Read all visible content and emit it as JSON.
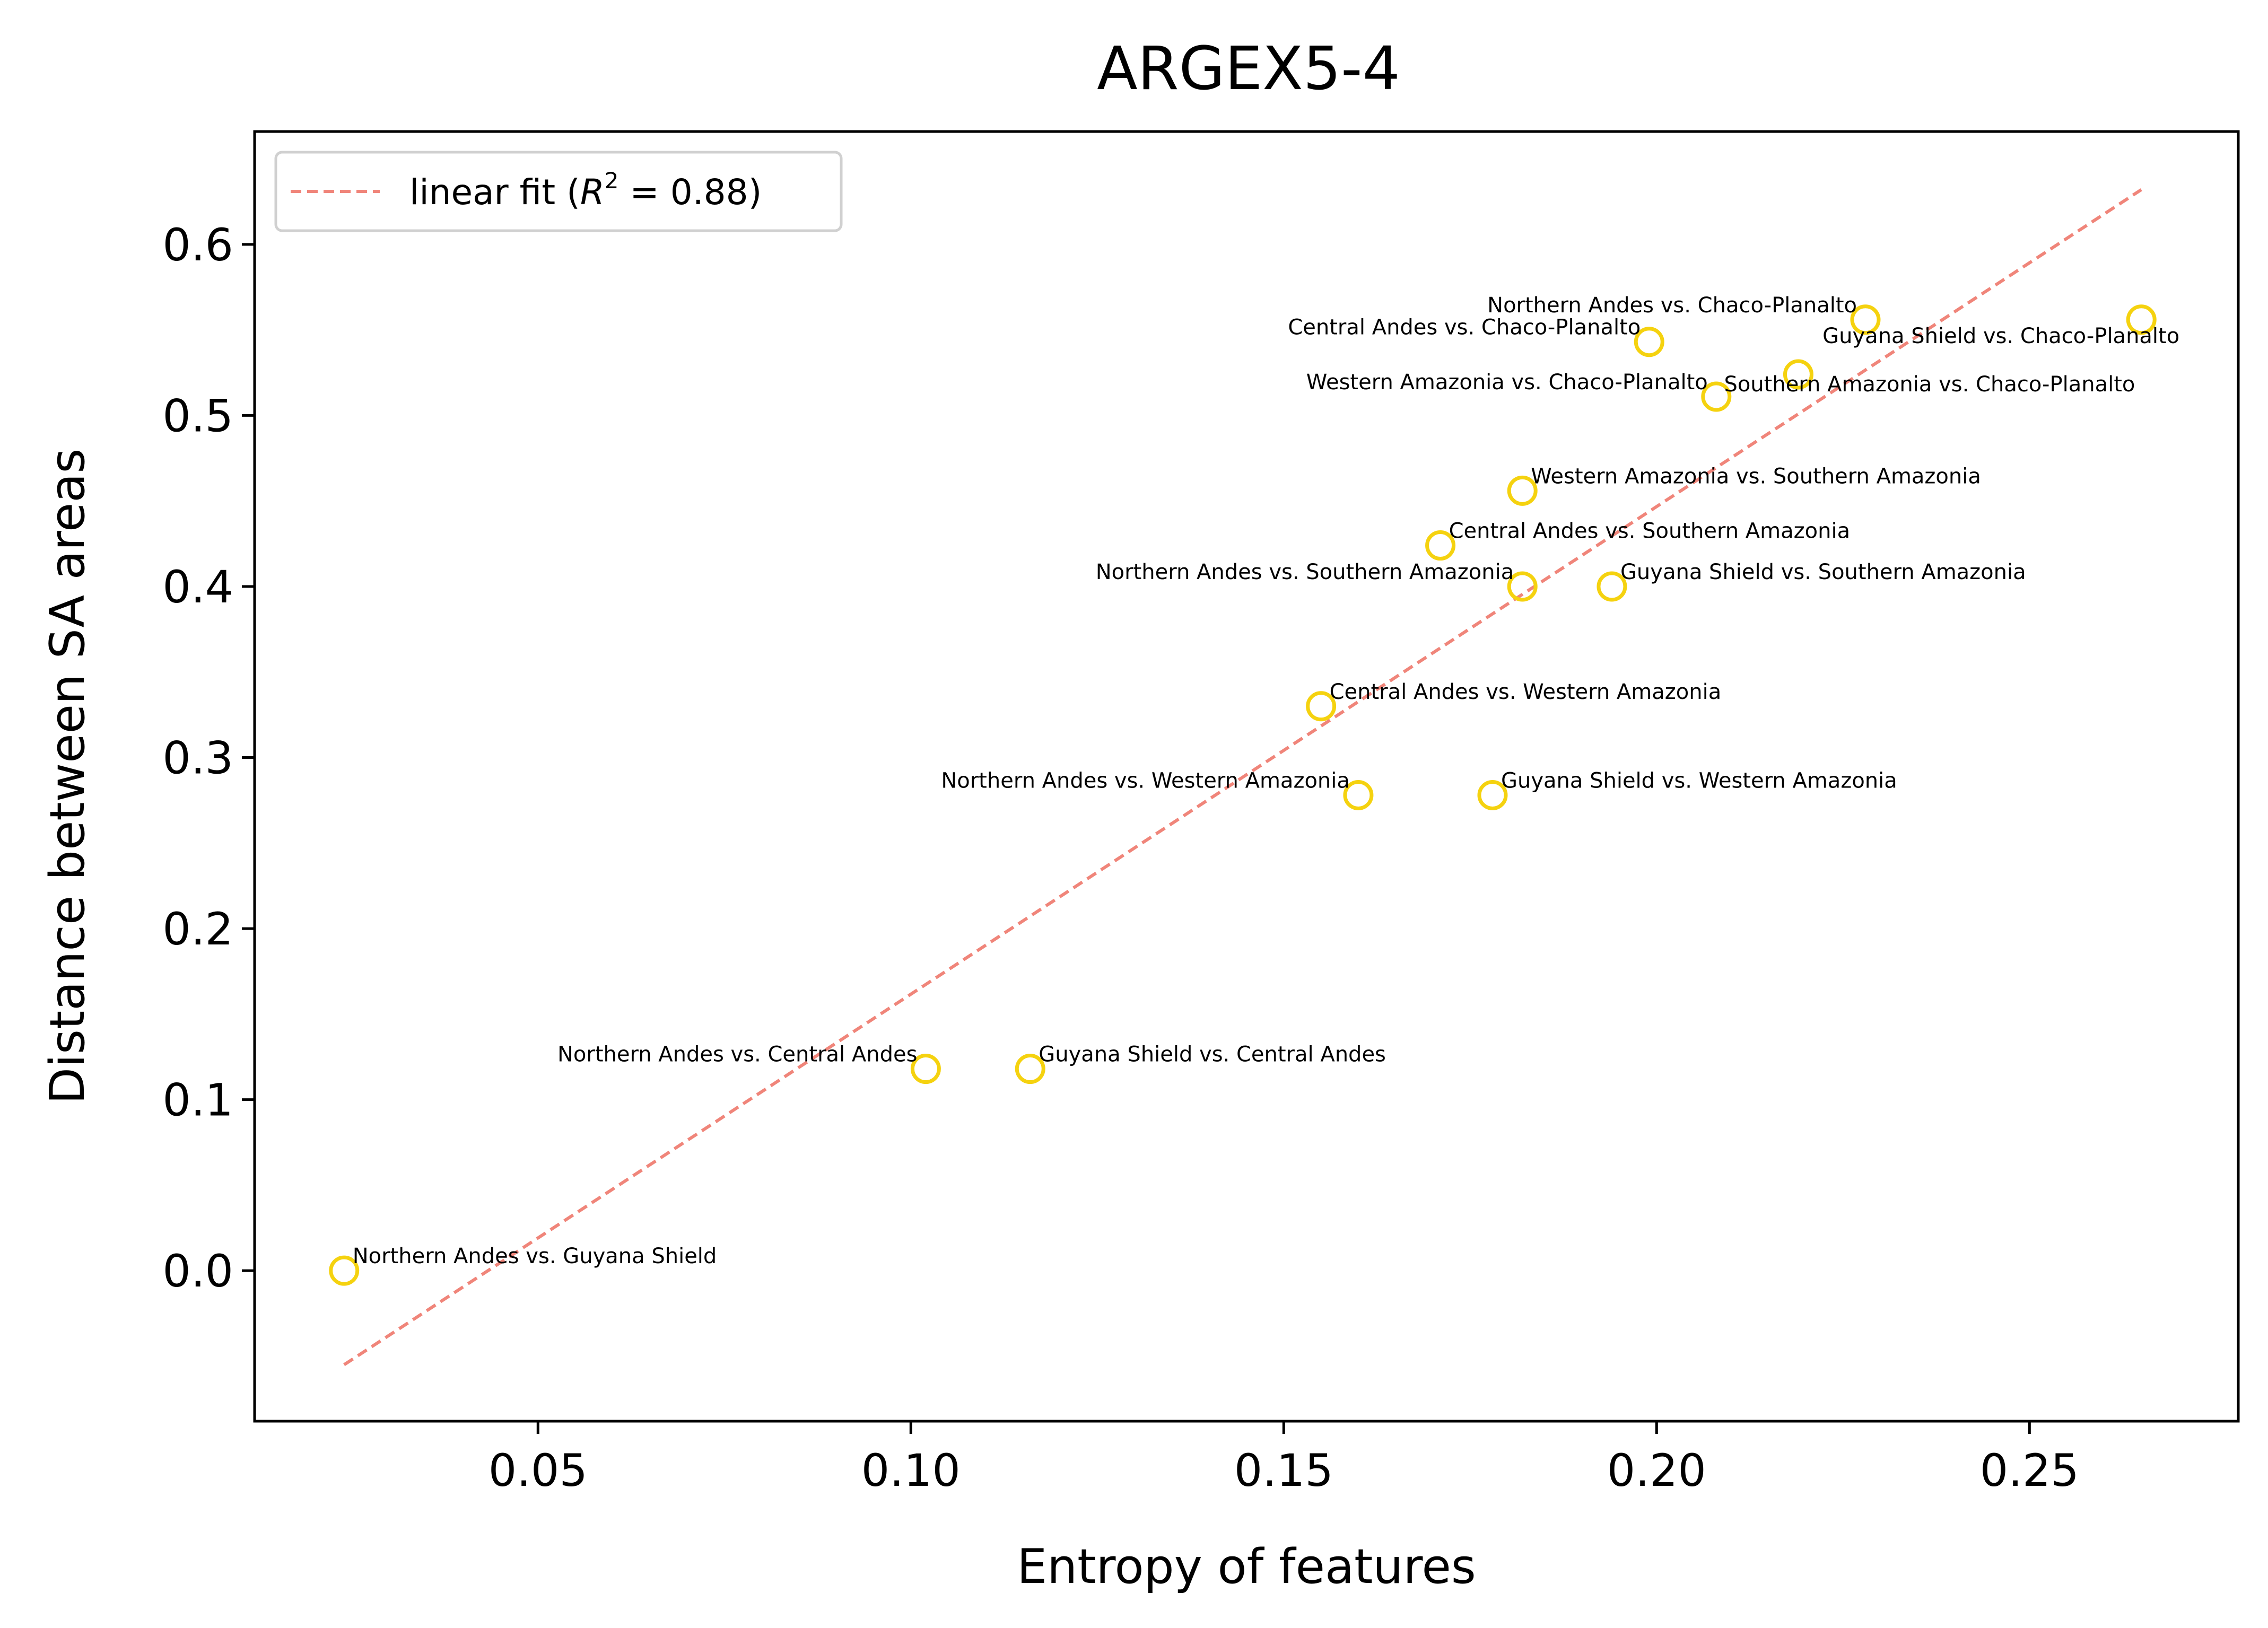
{
  "chart_data": {
    "type": "scatter",
    "title": "ARGEX5-4",
    "xlabel": "Entropy of features",
    "ylabel": "Distance between SA areas",
    "xlim": [
      0.012,
      0.278
    ],
    "ylim": [
      -0.088,
      0.666
    ],
    "xticks": [
      0.05,
      0.1,
      0.15,
      0.2,
      0.25
    ],
    "xtick_labels": [
      "0.05",
      "0.10",
      "0.15",
      "0.20",
      "0.25"
    ],
    "yticks": [
      0.0,
      0.1,
      0.2,
      0.3,
      0.4,
      0.5,
      0.6
    ],
    "ytick_labels": [
      "0.0",
      "0.1",
      "0.2",
      "0.3",
      "0.4",
      "0.5",
      "0.6"
    ],
    "grid": false,
    "marker_color": "#f5d20f",
    "fit_color": "#f0857a",
    "legend": {
      "placement": "top-left",
      "label_prefix": "linear fit (",
      "r": "R",
      "exponent": "2",
      "label_suffix": " = 0.88)"
    },
    "fit_line": {
      "x": [
        0.024,
        0.265
      ],
      "y": [
        -0.055,
        0.632
      ]
    },
    "points": [
      {
        "x": 0.024,
        "y": 0.0,
        "label": "Northern Andes vs. Guyana Shield",
        "anchor": "start"
      },
      {
        "x": 0.102,
        "y": 0.118,
        "label": "Northern Andes vs. Central Andes",
        "anchor": "end"
      },
      {
        "x": 0.116,
        "y": 0.118,
        "label": "Guyana Shield vs. Central Andes",
        "anchor": "start"
      },
      {
        "x": 0.16,
        "y": 0.278,
        "label": "Northern Andes vs. Western Amazonia",
        "anchor": "end"
      },
      {
        "x": 0.178,
        "y": 0.278,
        "label": "Guyana Shield vs. Western Amazonia",
        "anchor": "start"
      },
      {
        "x": 0.155,
        "y": 0.33,
        "label": "Central Andes vs. Western Amazonia",
        "anchor": "start"
      },
      {
        "x": 0.182,
        "y": 0.4,
        "label": "Northern Andes vs. Southern Amazonia",
        "anchor": "end"
      },
      {
        "x": 0.194,
        "y": 0.4,
        "label": "Guyana Shield vs. Southern Amazonia",
        "anchor": "start"
      },
      {
        "x": 0.171,
        "y": 0.424,
        "label": "Central Andes vs. Southern Amazonia",
        "anchor": "start"
      },
      {
        "x": 0.182,
        "y": 0.456,
        "label": "Western Amazonia vs. Southern Amazonia",
        "anchor": "start"
      },
      {
        "x": 0.208,
        "y": 0.511,
        "label": "Western Amazonia vs. Chaco-Planalto",
        "anchor": "end"
      },
      {
        "x": 0.219,
        "y": 0.524,
        "label": "Southern Amazonia vs. Chaco-Planalto",
        "anchor": "mid-right"
      },
      {
        "x": 0.199,
        "y": 0.543,
        "label": "Central Andes vs. Chaco-Planalto",
        "anchor": "end"
      },
      {
        "x": 0.228,
        "y": 0.556,
        "label": "Northern Andes vs. Chaco-Planalto",
        "anchor": "end"
      },
      {
        "x": 0.265,
        "y": 0.556,
        "label": "Guyana Shield vs. Chaco-Planalto",
        "anchor": "below-end"
      }
    ]
  }
}
